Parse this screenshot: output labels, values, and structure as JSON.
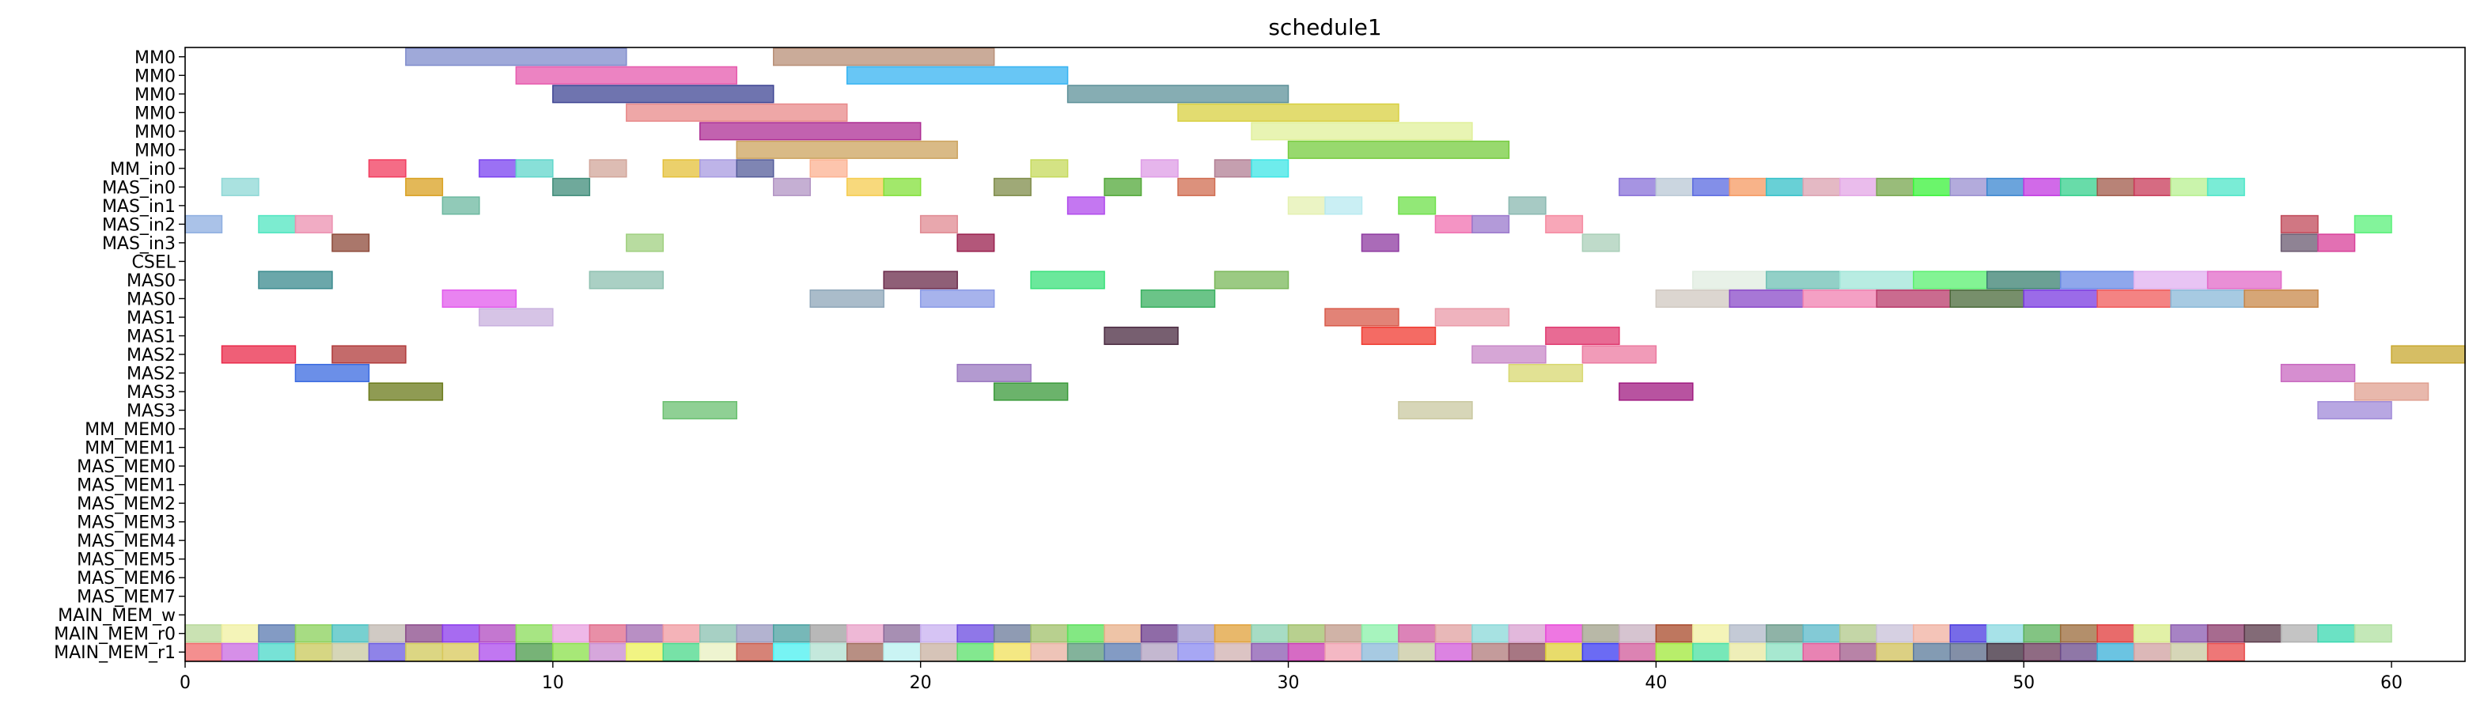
{
  "chart_data": {
    "type": "gantt",
    "title": "schedule1",
    "xlabel": "",
    "ylabel": "",
    "xlim": [
      0,
      62
    ],
    "x_ticks": [
      0,
      10,
      20,
      30,
      40,
      50,
      60
    ],
    "grid": false,
    "legend": "none",
    "rows": [
      "MM0",
      "MM0",
      "MM0",
      "MM0",
      "MM0",
      "MM0",
      "MM_in0",
      "MAS_in0",
      "MAS_in1",
      "MAS_in2",
      "MAS_in3",
      "CSEL",
      "MAS0",
      "MAS0",
      "MAS1",
      "MAS1",
      "MAS2",
      "MAS2",
      "MAS3",
      "MAS3",
      "MM_MEM0",
      "MM_MEM1",
      "MAS_MEM0",
      "MAS_MEM1",
      "MAS_MEM2",
      "MAS_MEM3",
      "MAS_MEM4",
      "MAS_MEM5",
      "MAS_MEM6",
      "MAS_MEM7",
      "MAIN_MEM_w",
      "MAIN_MEM_r0",
      "MAIN_MEM_r1"
    ],
    "tasks": [
      {
        "row": 0,
        "start": 6,
        "end": 12,
        "color": "#7f8ccc"
      },
      {
        "row": 0,
        "start": 16,
        "end": 22,
        "color": "#b88f77"
      },
      {
        "row": 1,
        "start": 9,
        "end": 15,
        "color": "#e65aad"
      },
      {
        "row": 1,
        "start": 18,
        "end": 24,
        "color": "#36b3f2"
      },
      {
        "row": 2,
        "start": 10,
        "end": 16,
        "color": "#3f4594"
      },
      {
        "row": 2,
        "start": 24,
        "end": 30,
        "color": "#5e9199"
      },
      {
        "row": 3,
        "start": 12,
        "end": 18,
        "color": "#e8898a"
      },
      {
        "row": 3,
        "start": 27,
        "end": 33,
        "color": "#d8d040"
      },
      {
        "row": 4,
        "start": 14,
        "end": 20,
        "color": "#ad2d94"
      },
      {
        "row": 4,
        "start": 29,
        "end": 35,
        "color": "#e0f09a"
      },
      {
        "row": 5,
        "start": 15,
        "end": 21,
        "color": "#cca35e"
      },
      {
        "row": 5,
        "start": 30,
        "end": 36,
        "color": "#76cc3e"
      },
      {
        "row": 6,
        "start": 5,
        "end": 6,
        "color": "#f23b5e"
      },
      {
        "row": 6,
        "start": 8,
        "end": 9,
        "color": "#7a42f0"
      },
      {
        "row": 6,
        "start": 9,
        "end": 10,
        "color": "#60d6cb"
      },
      {
        "row": 6,
        "start": 11,
        "end": 12,
        "color": "#d2a59a"
      },
      {
        "row": 6,
        "start": 13,
        "end": 14,
        "color": "#e4c03a"
      },
      {
        "row": 6,
        "start": 14,
        "end": 15,
        "color": "#a89be0"
      },
      {
        "row": 6,
        "start": 15,
        "end": 16,
        "color": "#545c9a"
      },
      {
        "row": 6,
        "start": 17,
        "end": 18,
        "color": "#fcb291"
      },
      {
        "row": 6,
        "start": 23,
        "end": 24,
        "color": "#c5d95b"
      },
      {
        "row": 6,
        "start": 26,
        "end": 27,
        "color": "#de9ce6"
      },
      {
        "row": 6,
        "start": 28,
        "end": 29,
        "color": "#b27f94"
      },
      {
        "row": 6,
        "start": 29,
        "end": 30,
        "color": "#3de6e6"
      },
      {
        "row": 7,
        "start": 1,
        "end": 2,
        "color": "#8ed8d6"
      },
      {
        "row": 7,
        "start": 6,
        "end": 7,
        "color": "#d9a020"
      },
      {
        "row": 7,
        "start": 10,
        "end": 11,
        "color": "#3f8c79"
      },
      {
        "row": 7,
        "start": 16,
        "end": 17,
        "color": "#b294c4"
      },
      {
        "row": 7,
        "start": 18,
        "end": 19,
        "color": "#f5cc50"
      },
      {
        "row": 7,
        "start": 19,
        "end": 20,
        "color": "#83e03a"
      },
      {
        "row": 7,
        "start": 22,
        "end": 23,
        "color": "#7f8c4a"
      },
      {
        "row": 7,
        "start": 25,
        "end": 26,
        "color": "#52a838"
      },
      {
        "row": 7,
        "start": 27,
        "end": 28,
        "color": "#d06c50"
      },
      {
        "row": 7,
        "start": 39,
        "end": 40,
        "color": "#8870d8"
      },
      {
        "row": 7,
        "start": 40,
        "end": 41,
        "color": "#bac8d6"
      },
      {
        "row": 7,
        "start": 41,
        "end": 42,
        "color": "#5a6ae0"
      },
      {
        "row": 7,
        "start": 42,
        "end": 43,
        "color": "#f59a62"
      },
      {
        "row": 7,
        "start": 43,
        "end": 44,
        "color": "#35c0c8"
      },
      {
        "row": 7,
        "start": 44,
        "end": 45,
        "color": "#dba2b0"
      },
      {
        "row": 7,
        "start": 45,
        "end": 46,
        "color": "#e3a6e6"
      },
      {
        "row": 7,
        "start": 46,
        "end": 47,
        "color": "#77a64e"
      },
      {
        "row": 7,
        "start": 47,
        "end": 48,
        "color": "#3af23a"
      },
      {
        "row": 7,
        "start": 48,
        "end": 49,
        "color": "#9a8fd0"
      },
      {
        "row": 7,
        "start": 49,
        "end": 50,
        "color": "#3a86d0"
      },
      {
        "row": 7,
        "start": 50,
        "end": 51,
        "color": "#c138e0"
      },
      {
        "row": 7,
        "start": 51,
        "end": 52,
        "color": "#35d08c"
      },
      {
        "row": 7,
        "start": 52,
        "end": 53,
        "color": "#a05a4a"
      },
      {
        "row": 7,
        "start": 53,
        "end": 54,
        "color": "#c83a58"
      },
      {
        "row": 7,
        "start": 54,
        "end": 55,
        "color": "#b8f090"
      },
      {
        "row": 7,
        "start": 55,
        "end": 56,
        "color": "#4de6c8"
      },
      {
        "row": 8,
        "start": 7,
        "end": 8,
        "color": "#6cb8a0"
      },
      {
        "row": 8,
        "start": 24,
        "end": 25,
        "color": "#b04aec"
      },
      {
        "row": 8,
        "start": 30,
        "end": 31,
        "color": "#e4f0b0"
      },
      {
        "row": 8,
        "start": 31,
        "end": 32,
        "color": "#b8eaf0"
      },
      {
        "row": 8,
        "start": 33,
        "end": 34,
        "color": "#6ee04a"
      },
      {
        "row": 8,
        "start": 36,
        "end": 37,
        "color": "#8ab8b0"
      },
      {
        "row": 9,
        "start": 0,
        "end": 1,
        "color": "#8eaee0"
      },
      {
        "row": 9,
        "start": 2,
        "end": 3,
        "color": "#50e6c0"
      },
      {
        "row": 9,
        "start": 3,
        "end": 4,
        "color": "#ec90b0"
      },
      {
        "row": 9,
        "start": 20,
        "end": 21,
        "color": "#e08a92"
      },
      {
        "row": 9,
        "start": 34,
        "end": 35,
        "color": "#f070b0"
      },
      {
        "row": 9,
        "start": 35,
        "end": 36,
        "color": "#9a78cc"
      },
      {
        "row": 9,
        "start": 37,
        "end": 38,
        "color": "#f58aa0"
      },
      {
        "row": 9,
        "start": 59,
        "end": 60,
        "color": "#5af07a"
      },
      {
        "row": 9,
        "start": 57,
        "end": 58,
        "color": "#c04a5a"
      },
      {
        "row": 10,
        "start": 4,
        "end": 5,
        "color": "#8e4a3a"
      },
      {
        "row": 10,
        "start": 12,
        "end": 13,
        "color": "#a0d080"
      },
      {
        "row": 10,
        "start": 21,
        "end": 22,
        "color": "#9a1f4e"
      },
      {
        "row": 10,
        "start": 32,
        "end": 33,
        "color": "#8e3aa0"
      },
      {
        "row": 10,
        "start": 38,
        "end": 39,
        "color": "#aacfb8"
      },
      {
        "row": 10,
        "start": 57,
        "end": 58,
        "color": "#6a5a70"
      },
      {
        "row": 10,
        "start": 58,
        "end": 59,
        "color": "#d8409a"
      },
      {
        "row": 12,
        "start": 2,
        "end": 4,
        "color": "#3a8a8e"
      },
      {
        "row": 12,
        "start": 11,
        "end": 13,
        "color": "#8ec0b0"
      },
      {
        "row": 12,
        "start": 19,
        "end": 21,
        "color": "#6a2a4a"
      },
      {
        "row": 12,
        "start": 23,
        "end": 25,
        "color": "#3ae07a"
      },
      {
        "row": 12,
        "start": 28,
        "end": 30,
        "color": "#7ab85a"
      },
      {
        "row": 12,
        "start": 41,
        "end": 43,
        "color": "#e0ece0"
      },
      {
        "row": 12,
        "start": 43,
        "end": 45,
        "color": "#6ec0b4"
      },
      {
        "row": 12,
        "start": 45,
        "end": 47,
        "color": "#a0e6d8"
      },
      {
        "row": 12,
        "start": 47,
        "end": 49,
        "color": "#5af070"
      },
      {
        "row": 12,
        "start": 49,
        "end": 51,
        "color": "#3a8070"
      },
      {
        "row": 12,
        "start": 51,
        "end": 53,
        "color": "#6a8ae6"
      },
      {
        "row": 12,
        "start": 53,
        "end": 55,
        "color": "#e0b0f0"
      },
      {
        "row": 12,
        "start": 55,
        "end": 57,
        "color": "#e26ac8"
      },
      {
        "row": 13,
        "start": 7,
        "end": 9,
        "color": "#e25aec"
      },
      {
        "row": 13,
        "start": 17,
        "end": 19,
        "color": "#8ea6b8"
      },
      {
        "row": 13,
        "start": 20,
        "end": 22,
        "color": "#8a9ae6"
      },
      {
        "row": 13,
        "start": 26,
        "end": 28,
        "color": "#3ab060"
      },
      {
        "row": 13,
        "start": 40,
        "end": 42,
        "color": "#d0c8c0"
      },
      {
        "row": 13,
        "start": 42,
        "end": 44,
        "color": "#8a4ac8"
      },
      {
        "row": 13,
        "start": 44,
        "end": 46,
        "color": "#f080b0"
      },
      {
        "row": 13,
        "start": 46,
        "end": 48,
        "color": "#b83a6a"
      },
      {
        "row": 13,
        "start": 48,
        "end": 50,
        "color": "#4a6a3a"
      },
      {
        "row": 13,
        "start": 50,
        "end": 52,
        "color": "#7a3ae0"
      },
      {
        "row": 13,
        "start": 52,
        "end": 54,
        "color": "#f05a5a"
      },
      {
        "row": 13,
        "start": 54,
        "end": 56,
        "color": "#8ab8d8"
      },
      {
        "row": 13,
        "start": 56,
        "end": 58,
        "color": "#c8884a"
      },
      {
        "row": 14,
        "start": 8,
        "end": 10,
        "color": "#c8b0de"
      },
      {
        "row": 14,
        "start": 31,
        "end": 33,
        "color": "#d85a4a"
      },
      {
        "row": 14,
        "start": 34,
        "end": 36,
        "color": "#ea9aa8"
      },
      {
        "row": 15,
        "start": 25,
        "end": 27,
        "color": "#4a2a40"
      },
      {
        "row": 15,
        "start": 32,
        "end": 34,
        "color": "#f03a30"
      },
      {
        "row": 15,
        "start": 37,
        "end": 39,
        "color": "#e03a70"
      },
      {
        "row": 16,
        "start": 1,
        "end": 3,
        "color": "#ea2a4a"
      },
      {
        "row": 16,
        "start": 4,
        "end": 6,
        "color": "#b03a3a"
      },
      {
        "row": 16,
        "start": 35,
        "end": 37,
        "color": "#c888c8"
      },
      {
        "row": 16,
        "start": 38,
        "end": 40,
        "color": "#ec7aa0"
      },
      {
        "row": 16,
        "start": 60,
        "end": 62,
        "color": "#c8a830"
      },
      {
        "row": 17,
        "start": 3,
        "end": 5,
        "color": "#3a6ae0"
      },
      {
        "row": 17,
        "start": 21,
        "end": 23,
        "color": "#9a78c0"
      },
      {
        "row": 17,
        "start": 36,
        "end": 38,
        "color": "#d8d870"
      },
      {
        "row": 17,
        "start": 57,
        "end": 59,
        "color": "#c868c0"
      },
      {
        "row": 18,
        "start": 5,
        "end": 7,
        "color": "#6a7a1a"
      },
      {
        "row": 18,
        "start": 22,
        "end": 24,
        "color": "#3a9a3a"
      },
      {
        "row": 18,
        "start": 39,
        "end": 41,
        "color": "#a01a80"
      },
      {
        "row": 18,
        "start": 59,
        "end": 61,
        "color": "#e0a090"
      },
      {
        "row": 19,
        "start": 13,
        "end": 15,
        "color": "#6ac070"
      },
      {
        "row": 19,
        "start": 33,
        "end": 35,
        "color": "#cac8a0"
      },
      {
        "row": 19,
        "start": 58,
        "end": 60,
        "color": "#a08ad8"
      }
    ],
    "main_mem_r0_colors": [
      "#b8d89a",
      "#f0f0a0",
      "#5a7ab0",
      "#8ad05a",
      "#4ac0c0",
      "#c0b8b0",
      "#8a4a8a",
      "#8a3aec",
      "#b04ac0",
      "#8adc5a",
      "#e8a0e0",
      "#e06a8a",
      "#a06ab0",
      "#f09aa0",
      "#8ac0b0",
      "#9a9ac0",
      "#4aa0a0",
      "#a0a0a0",
      "#e8a0c8",
      "#8a6a9a",
      "#c8b0f0",
      "#6a4ae0",
      "#6a7a9a",
      "#a0c06a",
      "#5ae05a",
      "#e8b08a",
      "#6a3a8a",
      "#a09ad0",
      "#e0a03a",
      "#8ad0b0",
      "#a0c06a",
      "#c09a8a",
      "#8af0a8",
      "#d05aa0",
      "#e0a0a0",
      "#8ad8d8",
      "#d8a0d0",
      "#e84ad8",
      "#a0a08a",
      "#c8b0c0",
      "#a84a2a",
      "#f0f0a0",
      "#b0b8c8",
      "#6a9a8a",
      "#5ab8c8",
      "#b0c88a",
      "#c8c0d8",
      "#f0b0a0",
      "#4a3ae0",
      "#8ad8e0",
      "#5ab05a",
      "#9a6a3a",
      "#e03a3a",
      "#d8ec8a",
      "#8a5ab0",
      "#8a3a6a",
      "#5a3a4a",
      "#b0b0b0",
      "#3ad8b0",
      "#b0e0a0"
    ],
    "main_mem_r1_colors": [
      "#f06a6a",
      "#c86ae0",
      "#4ad8c8",
      "#c8c85a",
      "#c8c8a0",
      "#6a5ae0",
      "#d0c85a",
      "#d8c85a",
      "#ac4aec",
      "#4a9a4a",
      "#8ae04a",
      "#c88ad0",
      "#ecf05a",
      "#4ad88a",
      "#e8f0c0",
      "#c85a4a",
      "#4af0f0",
      "#b0e0d0",
      "#a06a5a",
      "#b8f0f0",
      "#c8b0a0",
      "#5ae06a",
      "#f0e05a",
      "#e8b0a0",
      "#5a9a7a",
      "#5a7ab0",
      "#b0a0c0",
      "#8a8af0",
      "#d0b0b0",
      "#8a5ab0",
      "#c83ab0",
      "#f0a0b0",
      "#8ab8d8",
      "#c8c8a0",
      "#d05ad8",
      "#b07a7a",
      "#8a4a5a",
      "#e0d03a",
      "#3a3af0",
      "#d05a9a",
      "#a0e83a",
      "#4ae0a0",
      "#e8e8a0",
      "#8ae0c0",
      "#e05a9a",
      "#a05a8a",
      "#d0c05a",
      "#5a7a9a",
      "#5a6a8a",
      "#3a2a3a",
      "#6a3a5a",
      "#6a4a8a",
      "#3ab0d8",
      "#d0a0a0",
      "#c8c8a0",
      "#e84a4a"
    ],
    "main_mem_r0_span": [
      0,
      60
    ],
    "main_mem_r1_span": [
      0,
      60
    ]
  }
}
